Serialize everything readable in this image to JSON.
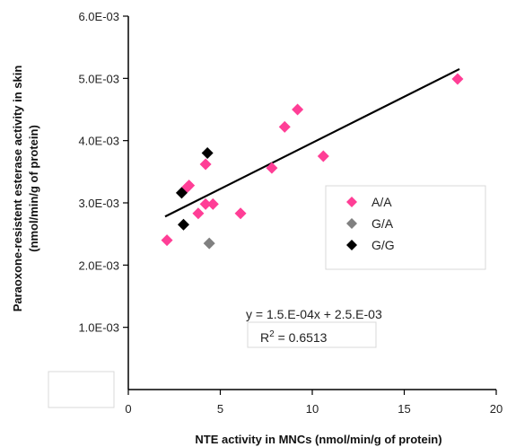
{
  "chart_data": {
    "type": "scatter",
    "xlabel": "NTE activity in MNCs (nmol/min/g of protein)",
    "ylabel_line1": "Paraoxone-resistent esterase activity in skin",
    "ylabel_line2": "(nmol/min/g of protein)",
    "xlim": [
      0,
      20
    ],
    "ylim": [
      0,
      0.006
    ],
    "x_ticks": [
      {
        "value": 0,
        "label": "0"
      },
      {
        "value": 5,
        "label": "5"
      },
      {
        "value": 10,
        "label": "10"
      },
      {
        "value": 15,
        "label": "15"
      },
      {
        "value": 20,
        "label": "20"
      }
    ],
    "y_ticks": [
      {
        "value": 0.001,
        "label": "1.0E-03"
      },
      {
        "value": 0.002,
        "label": "2.0E-03"
      },
      {
        "value": 0.003,
        "label": "3.0E-03"
      },
      {
        "value": 0.004,
        "label": "4.0E-03"
      },
      {
        "value": 0.005,
        "label": "5.0E-03"
      },
      {
        "value": 0.006,
        "label": "6.0E-03"
      }
    ],
    "series": [
      {
        "name": "A/A",
        "color": "#ff3e96",
        "points": [
          {
            "x": 2.1,
            "y": 0.0024
          },
          {
            "x": 3.2,
            "y": 0.00325
          },
          {
            "x": 3.3,
            "y": 0.00328
          },
          {
            "x": 3.8,
            "y": 0.00283
          },
          {
            "x": 4.2,
            "y": 0.00362
          },
          {
            "x": 4.2,
            "y": 0.00298
          },
          {
            "x": 4.6,
            "y": 0.00298
          },
          {
            "x": 6.1,
            "y": 0.00283
          },
          {
            "x": 7.8,
            "y": 0.00356
          },
          {
            "x": 8.5,
            "y": 0.00422
          },
          {
            "x": 9.2,
            "y": 0.0045
          },
          {
            "x": 10.6,
            "y": 0.00375
          },
          {
            "x": 17.9,
            "y": 0.00499
          }
        ]
      },
      {
        "name": "G/A",
        "color": "#808080",
        "points": [
          {
            "x": 4.4,
            "y": 0.00235
          }
        ]
      },
      {
        "name": "G/G",
        "color": "#000000",
        "points": [
          {
            "x": 2.9,
            "y": 0.00316
          },
          {
            "x": 3.0,
            "y": 0.00265
          },
          {
            "x": 4.3,
            "y": 0.0038
          }
        ]
      }
    ],
    "trendline": {
      "x_start": 2.0,
      "x_end": 18.0,
      "y_start": 0.00278,
      "y_end": 0.00515,
      "equation": "y = 1.5.E-04x + 2.5.E-03",
      "r2_prefix": "R",
      "r2_sup": "2",
      "r2_value": " = 0.6513"
    },
    "legend_position": "right"
  }
}
